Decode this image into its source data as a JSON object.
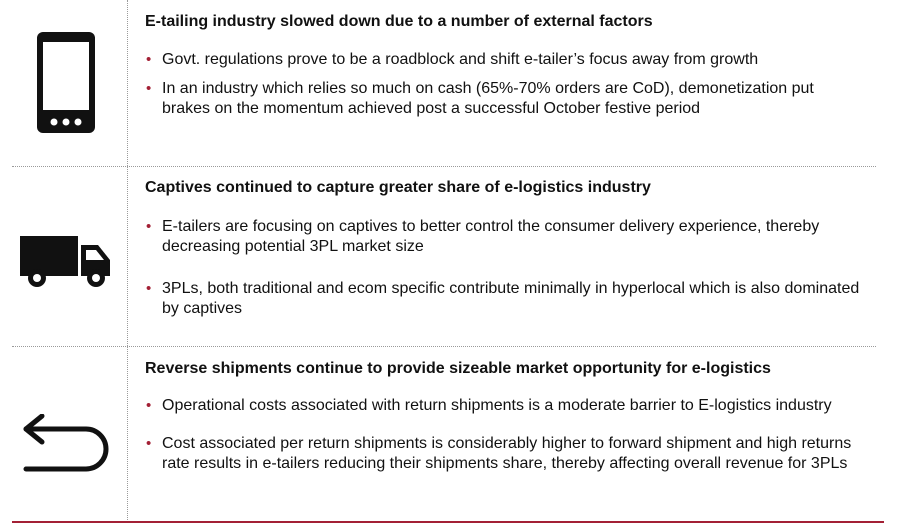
{
  "colors": {
    "accent": "#a32035",
    "icon": "#111111",
    "separator": "#9a9a9a"
  },
  "sections": [
    {
      "icon": "smartphone-icon",
      "title": "E-tailing industry slowed down due to a number of external factors",
      "bullets": [
        "Govt. regulations prove to be a roadblock and shift e-tailer’s focus away from growth",
        "In an industry which relies so much on cash (65%-70% orders are CoD), demonetization put brakes on the momentum achieved post a successful October festive period"
      ]
    },
    {
      "icon": "delivery-truck-icon",
      "title": "Captives continued to capture greater share of  e-logistics industry",
      "bullets": [
        "E-tailers are focusing on captives to better control the consumer delivery experience, thereby decreasing potential 3PL market size",
        "3PLs, both traditional and ecom specific contribute minimally in hyperlocal which is also dominated by captives"
      ]
    },
    {
      "icon": "return-arrow-icon",
      "title": "Reverse shipments continue to provide sizeable market opportunity for e-logistics",
      "bullets": [
        "Operational costs associated with return shipments is a moderate barrier to E-logistics industry",
        "Cost associated per return shipments is considerably higher to forward shipment and high returns rate results in e-tailers reducing their shipments share, thereby affecting overall revenue for 3PLs"
      ]
    }
  ]
}
